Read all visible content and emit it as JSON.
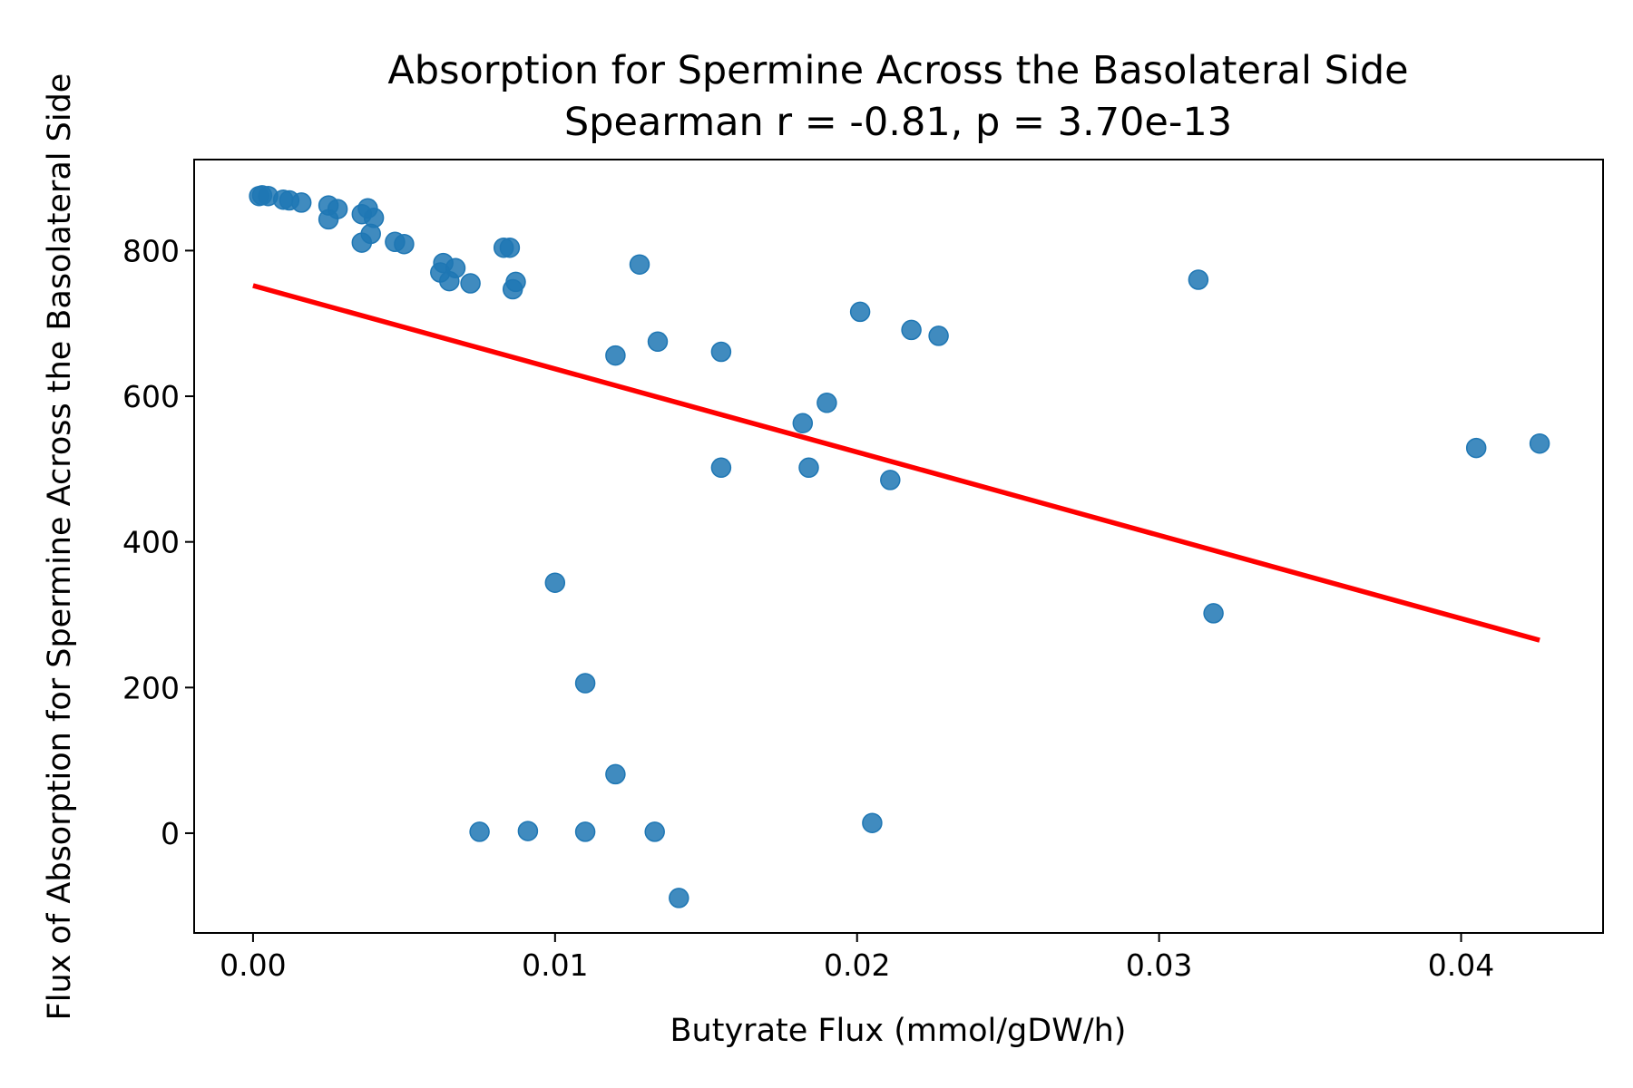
{
  "chart_data": {
    "type": "scatter",
    "title": "Absorption for Spermine Across the Basolateral Side",
    "subtitle": "Spearman r = -0.81, p = 3.70e-13",
    "xlabel": "Butyrate Flux (mmol/gDW/h)",
    "ylabel": "Flux of Absorption for Spermine Across the Basolateral Side",
    "xlim": [
      -0.00195,
      0.0447
    ],
    "ylim": [
      -137,
      925
    ],
    "xticks": [
      {
        "value": 0.0,
        "label": "0.00"
      },
      {
        "value": 0.01,
        "label": "0.01"
      },
      {
        "value": 0.02,
        "label": "0.02"
      },
      {
        "value": 0.03,
        "label": "0.03"
      },
      {
        "value": 0.04,
        "label": "0.04"
      }
    ],
    "yticks": [
      {
        "value": 0,
        "label": "0"
      },
      {
        "value": 200,
        "label": "200"
      },
      {
        "value": 400,
        "label": "400"
      },
      {
        "value": 600,
        "label": "600"
      },
      {
        "value": 800,
        "label": "800"
      }
    ],
    "grid": false,
    "colors": {
      "points": "#1f77b4",
      "fit_line": "#ff0000"
    },
    "series": [
      {
        "kind": "points",
        "x": [
          0.0002,
          0.0003,
          0.0005,
          0.001,
          0.0012,
          0.0016,
          0.0025,
          0.0028,
          0.0025,
          0.0036,
          0.0038,
          0.004,
          0.0039,
          0.0036,
          0.0047,
          0.005,
          0.0062,
          0.0063,
          0.0065,
          0.0067,
          0.0072,
          0.0083,
          0.0085,
          0.0087,
          0.0086,
          0.0128,
          0.012,
          0.0134,
          0.0155,
          0.0155,
          0.0182,
          0.019,
          0.0184,
          0.0201,
          0.0218,
          0.0227,
          0.0211,
          0.0313,
          0.0318,
          0.0405,
          0.0426,
          0.01,
          0.011,
          0.012,
          0.0075,
          0.0091,
          0.011,
          0.0133,
          0.0141,
          0.0205
        ],
        "y": [
          875,
          876,
          875,
          870,
          869,
          866,
          862,
          857,
          843,
          850,
          858,
          845,
          823,
          811,
          812,
          809,
          770,
          783,
          758,
          776,
          755,
          804,
          804,
          757,
          747,
          781,
          656,
          675,
          661,
          502,
          563,
          591,
          502,
          716,
          691,
          683,
          485,
          760,
          302,
          529,
          535,
          344,
          206,
          81,
          2,
          3,
          2,
          2,
          -89,
          14
        ]
      },
      {
        "kind": "line",
        "x": [
          0.0,
          0.0426
        ],
        "y": [
          752,
          265
        ]
      }
    ]
  }
}
